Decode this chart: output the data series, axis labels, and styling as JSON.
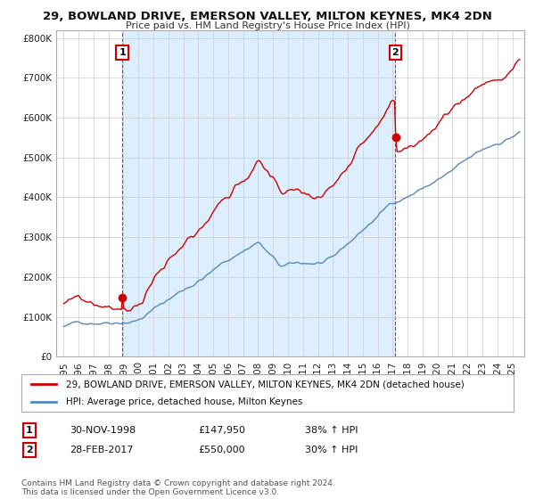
{
  "title": "29, BOWLAND DRIVE, EMERSON VALLEY, MILTON KEYNES, MK4 2DN",
  "subtitle": "Price paid vs. HM Land Registry's House Price Index (HPI)",
  "red_label": "29, BOWLAND DRIVE, EMERSON VALLEY, MILTON KEYNES, MK4 2DN (detached house)",
  "blue_label": "HPI: Average price, detached house, Milton Keynes",
  "transaction1_date": "30-NOV-1998",
  "transaction1_price": "£147,950",
  "transaction1_hpi": "38% ↑ HPI",
  "transaction1_year": 1998.92,
  "transaction1_value": 147950,
  "transaction2_date": "28-FEB-2017",
  "transaction2_price": "£550,000",
  "transaction2_hpi": "30% ↑ HPI",
  "transaction2_year": 2017.17,
  "transaction2_value": 550000,
  "footnote": "Contains HM Land Registry data © Crown copyright and database right 2024.\nThis data is licensed under the Open Government Licence v3.0.",
  "ylim": [
    0,
    820000
  ],
  "yticks": [
    0,
    100000,
    200000,
    300000,
    400000,
    500000,
    600000,
    700000,
    800000
  ],
  "red_color": "#cc0000",
  "blue_color": "#5588bb",
  "shading_color": "#ddeeff",
  "background_color": "#ffffff",
  "grid_color": "#cccccc"
}
